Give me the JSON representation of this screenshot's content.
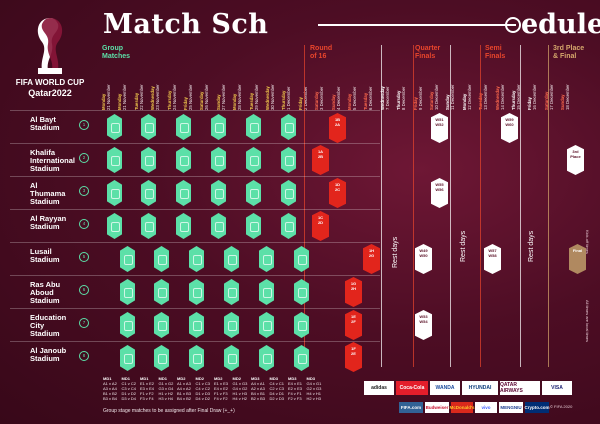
{
  "title_left": "Match Sch",
  "title_right": "edule",
  "brand_line1": "FIFA WORLD CUP",
  "brand_line2": "Qatar2022",
  "stages": {
    "group": "Group\nMatches",
    "r16": "Round\nof 16",
    "qf": "Quarter\nFinals",
    "sf": "Semi\nFinals",
    "final": "3rd Place\n& Final"
  },
  "dates": [
    {
      "day": "Monday",
      "date": "21 November",
      "type": "group"
    },
    {
      "day": "Monday",
      "date": "21 November",
      "type": "group"
    },
    {
      "day": "Tuesday",
      "date": "22 November",
      "type": "group"
    },
    {
      "day": "Wednesday",
      "date": "23 November",
      "type": "group"
    },
    {
      "day": "Thursday",
      "date": "24 November",
      "type": "group"
    },
    {
      "day": "Friday",
      "date": "25 November",
      "type": "group"
    },
    {
      "day": "Saturday",
      "date": "26 November",
      "type": "group"
    },
    {
      "day": "Sunday",
      "date": "27 November",
      "type": "group"
    },
    {
      "day": "Monday",
      "date": "28 November",
      "type": "group"
    },
    {
      "day": "Tuesday",
      "date": "29 November",
      "type": "group"
    },
    {
      "day": "Wednesday",
      "date": "30 November",
      "type": "group"
    },
    {
      "day": "Thursday",
      "date": "1 December",
      "type": "group"
    },
    {
      "day": "Friday",
      "date": "2 December",
      "type": "group"
    },
    {
      "day": "Saturday",
      "date": "3 December",
      "type": "red"
    },
    {
      "day": "Sunday",
      "date": "4 December",
      "type": "red"
    },
    {
      "day": "Monday",
      "date": "5 December",
      "type": "red"
    },
    {
      "day": "Tuesday",
      "date": "6 December",
      "type": "red"
    },
    {
      "day": "Wednesday",
      "date": "7 December",
      "type": "rest"
    },
    {
      "day": "Thursday",
      "date": "8 December",
      "type": "rest"
    },
    {
      "day": "Friday",
      "date": "9 December",
      "type": "red"
    },
    {
      "day": "Saturday",
      "date": "10 December",
      "type": "red"
    },
    {
      "day": "Sunday",
      "date": "11 December",
      "type": "rest"
    },
    {
      "day": "Monday",
      "date": "12 December",
      "type": "rest"
    },
    {
      "day": "Tuesday",
      "date": "13 December",
      "type": "red"
    },
    {
      "day": "Wednesday",
      "date": "14 December",
      "type": "red"
    },
    {
      "day": "Thursday",
      "date": "15 December",
      "type": "rest"
    },
    {
      "day": "Friday",
      "date": "16 December",
      "type": "rest"
    },
    {
      "day": "Saturday",
      "date": "17 December",
      "type": "red"
    },
    {
      "day": "Sunday",
      "date": "18 December",
      "type": "red"
    }
  ],
  "stadiums": [
    {
      "name": "Al Bayt\nStadium"
    },
    {
      "name": "Khalifa\nInternational\nStadium"
    },
    {
      "name": "Al\nThumama\nStadium"
    },
    {
      "name": "Al Rayyan\nStadium"
    },
    {
      "name": "Lusail\nStadium"
    },
    {
      "name": "Ras Abu\nAboud\nStadium"
    },
    {
      "name": "Education\nCity\nStadium"
    },
    {
      "name": "Al Janoub\nStadium"
    }
  ],
  "knockout": [
    {
      "text": "1B\n2A",
      "color": "red"
    },
    {
      "text": "W51\nW52",
      "color": "white"
    },
    {
      "text": "W59\nW60",
      "color": "white"
    },
    {
      "text": "1A\n2B",
      "color": "red"
    },
    {
      "text": "3rd\nPlace",
      "color": "white"
    },
    {
      "text": "1D\n2C",
      "color": "red"
    },
    {
      "text": "W55\nW56",
      "color": "white"
    },
    {
      "text": "1C\n2D",
      "color": "red"
    },
    {
      "text": "1H\n2G",
      "color": "red"
    },
    {
      "text": "W49\nW50",
      "color": "white"
    },
    {
      "text": "W57\nW58",
      "color": "white"
    },
    {
      "text": "Final",
      "color": "gold"
    },
    {
      "text": "1G\n2H",
      "color": "red"
    },
    {
      "text": "1E\n2F",
      "color": "red"
    },
    {
      "text": "W53\nW54",
      "color": "white"
    },
    {
      "text": "1F\n2E",
      "color": "red"
    }
  ],
  "rest_days": [
    "Rest days",
    "Rest days",
    "Rest days",
    "Rest days"
  ],
  "group_legend": [
    {
      "code": "MD1",
      "lines": [
        "A1 v A2",
        "A3 v A4",
        "B1 v B2",
        "B3 v B4"
      ]
    },
    {
      "code": "MD1",
      "lines": [
        "C1 v C2",
        "C3 v C4",
        "D1 v D2",
        "D3 v D4"
      ]
    },
    {
      "code": "MD1",
      "lines": [
        "E1 v E2",
        "E3 v E4",
        "F1 v F2",
        "F3 v F4"
      ]
    },
    {
      "code": "MD1",
      "lines": [
        "G1 v G2",
        "G3 v G4",
        "H1 v H2",
        "H3 v H4"
      ]
    },
    {
      "code": "MD2",
      "lines": [
        "A1 v A3",
        "A4 v A2",
        "B1 v B3",
        "B4 v B2"
      ]
    },
    {
      "code": "MD2",
      "lines": [
        "C1 v C3",
        "C4 v C2",
        "D1 v D3",
        "D4 v D2"
      ]
    },
    {
      "code": "MD2",
      "lines": [
        "E1 v E3",
        "E4 v E2",
        "F1 v F3",
        "F4 v F2"
      ]
    },
    {
      "code": "MD2",
      "lines": [
        "G1 v G3",
        "G4 v G2",
        "H1 v H3",
        "H4 v H2"
      ]
    },
    {
      "code": "MD3",
      "lines": [
        "A4 v A1",
        "A2 v A3",
        "B4 v B1",
        "B2 v B3"
      ]
    },
    {
      "code": "MD3",
      "lines": [
        "C4 v C1",
        "C2 v C3",
        "D4 v D1",
        "D2 v D3"
      ]
    },
    {
      "code": "MD3",
      "lines": [
        "E4 v E1",
        "E2 v E3",
        "F4 v F1",
        "F2 v F3"
      ]
    },
    {
      "code": "MD3",
      "lines": [
        "G4 v G1",
        "G2 v G3",
        "H4 v H1",
        "H2 v H3"
      ]
    }
  ],
  "footnote": "Group stage matches to be assigned after Final Draw (+_+)",
  "sponsors_row1": [
    "adidas",
    "Coca-Cola",
    "WANDA",
    "HYUNDAI",
    "QATAR AIRWAYS",
    "VISA"
  ],
  "sponsors_row2": [
    "FIFA.com",
    "Budweiser",
    "McDonald's",
    "vivo",
    "MENGNIU",
    "Crypto.com"
  ],
  "side_note_top": "Kick-off times",
  "side_note_bottom": "All times are local times",
  "copyright": "© FIFA 2020",
  "colors": {
    "bg": "#4d0d24",
    "group": "#5ce0a8",
    "knockout": "#e2251c",
    "final": "#b08960"
  }
}
